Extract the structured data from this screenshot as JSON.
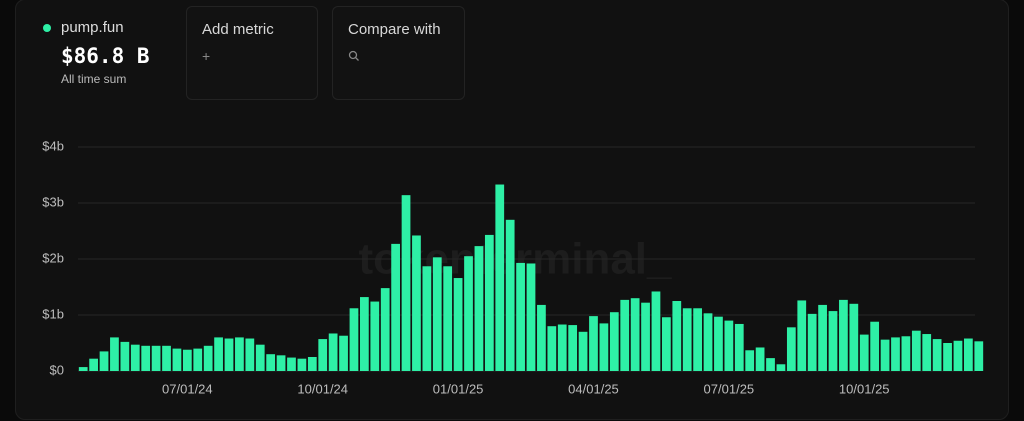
{
  "header": {
    "project": "pump.fun",
    "total": "$86.8 B",
    "total_caption": "All time sum"
  },
  "controls": {
    "add_metric": "Add metric",
    "compare_with": "Compare with"
  },
  "watermark": "tokenterminal_",
  "chart_data": {
    "type": "bar",
    "color": "#2ef0a6",
    "grid": true,
    "ylim": [
      0,
      4
    ],
    "yticks": [
      {
        "value": 0,
        "label": "$0"
      },
      {
        "value": 1,
        "label": "$1b"
      },
      {
        "value": 2,
        "label": "$2b"
      },
      {
        "value": 3,
        "label": "$3b"
      },
      {
        "value": 4,
        "label": "$4b"
      }
    ],
    "categories": [
      null,
      null,
      null,
      null,
      null,
      null,
      null,
      null,
      null,
      null,
      "07/01/24",
      null,
      null,
      null,
      null,
      null,
      null,
      null,
      null,
      null,
      null,
      null,
      null,
      "10/01/24",
      null,
      null,
      null,
      null,
      null,
      null,
      null,
      null,
      null,
      null,
      null,
      null,
      "01/01/25",
      null,
      null,
      null,
      null,
      null,
      null,
      null,
      null,
      null,
      null,
      null,
      null,
      "04/01/25",
      null,
      null,
      null,
      null,
      null,
      null,
      null,
      null,
      null,
      null,
      null,
      null,
      "07/01/25",
      null,
      null,
      null,
      null,
      null,
      null,
      null,
      null,
      null,
      null,
      null,
      null,
      "10/01/25",
      null,
      null,
      null,
      null,
      null,
      null,
      null,
      null,
      null,
      null,
      null
    ],
    "values": [
      0.07,
      0.22,
      0.35,
      0.6,
      0.52,
      0.47,
      0.45,
      0.45,
      0.45,
      0.4,
      0.38,
      0.4,
      0.45,
      0.6,
      0.58,
      0.6,
      0.58,
      0.47,
      0.3,
      0.28,
      0.24,
      0.22,
      0.25,
      0.57,
      0.67,
      0.63,
      1.12,
      1.32,
      1.24,
      1.48,
      2.27,
      3.14,
      2.42,
      1.87,
      2.03,
      1.87,
      1.66,
      2.05,
      2.23,
      2.43,
      3.33,
      2.7,
      1.93,
      1.92,
      1.18,
      0.8,
      0.83,
      0.82,
      0.7,
      0.98,
      0.85,
      1.05,
      1.27,
      1.3,
      1.22,
      1.42,
      0.96,
      1.25,
      1.12,
      1.12,
      1.03,
      0.97,
      0.9,
      0.84,
      0.37,
      0.42,
      0.23,
      0.12,
      0.78,
      1.26,
      1.02,
      1.18,
      1.07,
      1.27,
      1.2,
      0.65,
      0.88,
      0.56,
      0.6,
      0.62,
      0.72,
      0.66,
      0.57,
      0.5,
      0.54,
      0.58,
      0.53
    ]
  }
}
